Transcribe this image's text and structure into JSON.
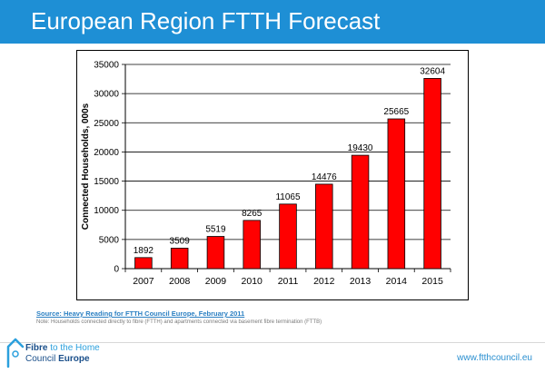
{
  "header": {
    "title": "European Region FTTH Forecast"
  },
  "chart_data": {
    "type": "bar",
    "categories": [
      "2007",
      "2008",
      "2009",
      "2010",
      "2011",
      "2012",
      "2013",
      "2014",
      "2015"
    ],
    "values": [
      1892,
      3509,
      5519,
      8265,
      11065,
      14476,
      19430,
      25665,
      32604
    ],
    "data_labels": [
      "1892",
      "3509",
      "5519",
      "8265",
      "11065",
      "14476",
      "19430",
      "25665",
      "32604"
    ],
    "title": "",
    "xlabel": "",
    "ylabel": "Connected Households, 000s",
    "ylim": [
      0,
      35000
    ],
    "yticks": [
      0,
      5000,
      10000,
      15000,
      20000,
      25000,
      30000,
      35000
    ],
    "grid": true,
    "bar_color": "#ff0000"
  },
  "footer": {
    "source": "Source: Heavy Reading for FTTH Council Europe, February 2011",
    "note": "Note: Households connected directly to fibre (FTTH) and apartments connected via basement fibre termination (FTTB)",
    "logo": {
      "line1_main": "Fibre",
      "line1_highlight": "to the Home",
      "line2_main": "Council",
      "line2_highlight": "Europe"
    },
    "website": "www.ftthcouncil.eu"
  },
  "colors": {
    "header": "#1e8fd5",
    "bars": "#ff0000",
    "source_link": "#2a7fc2",
    "logo_dark": "#1a4f8a",
    "logo_light": "#2ba0dd"
  }
}
